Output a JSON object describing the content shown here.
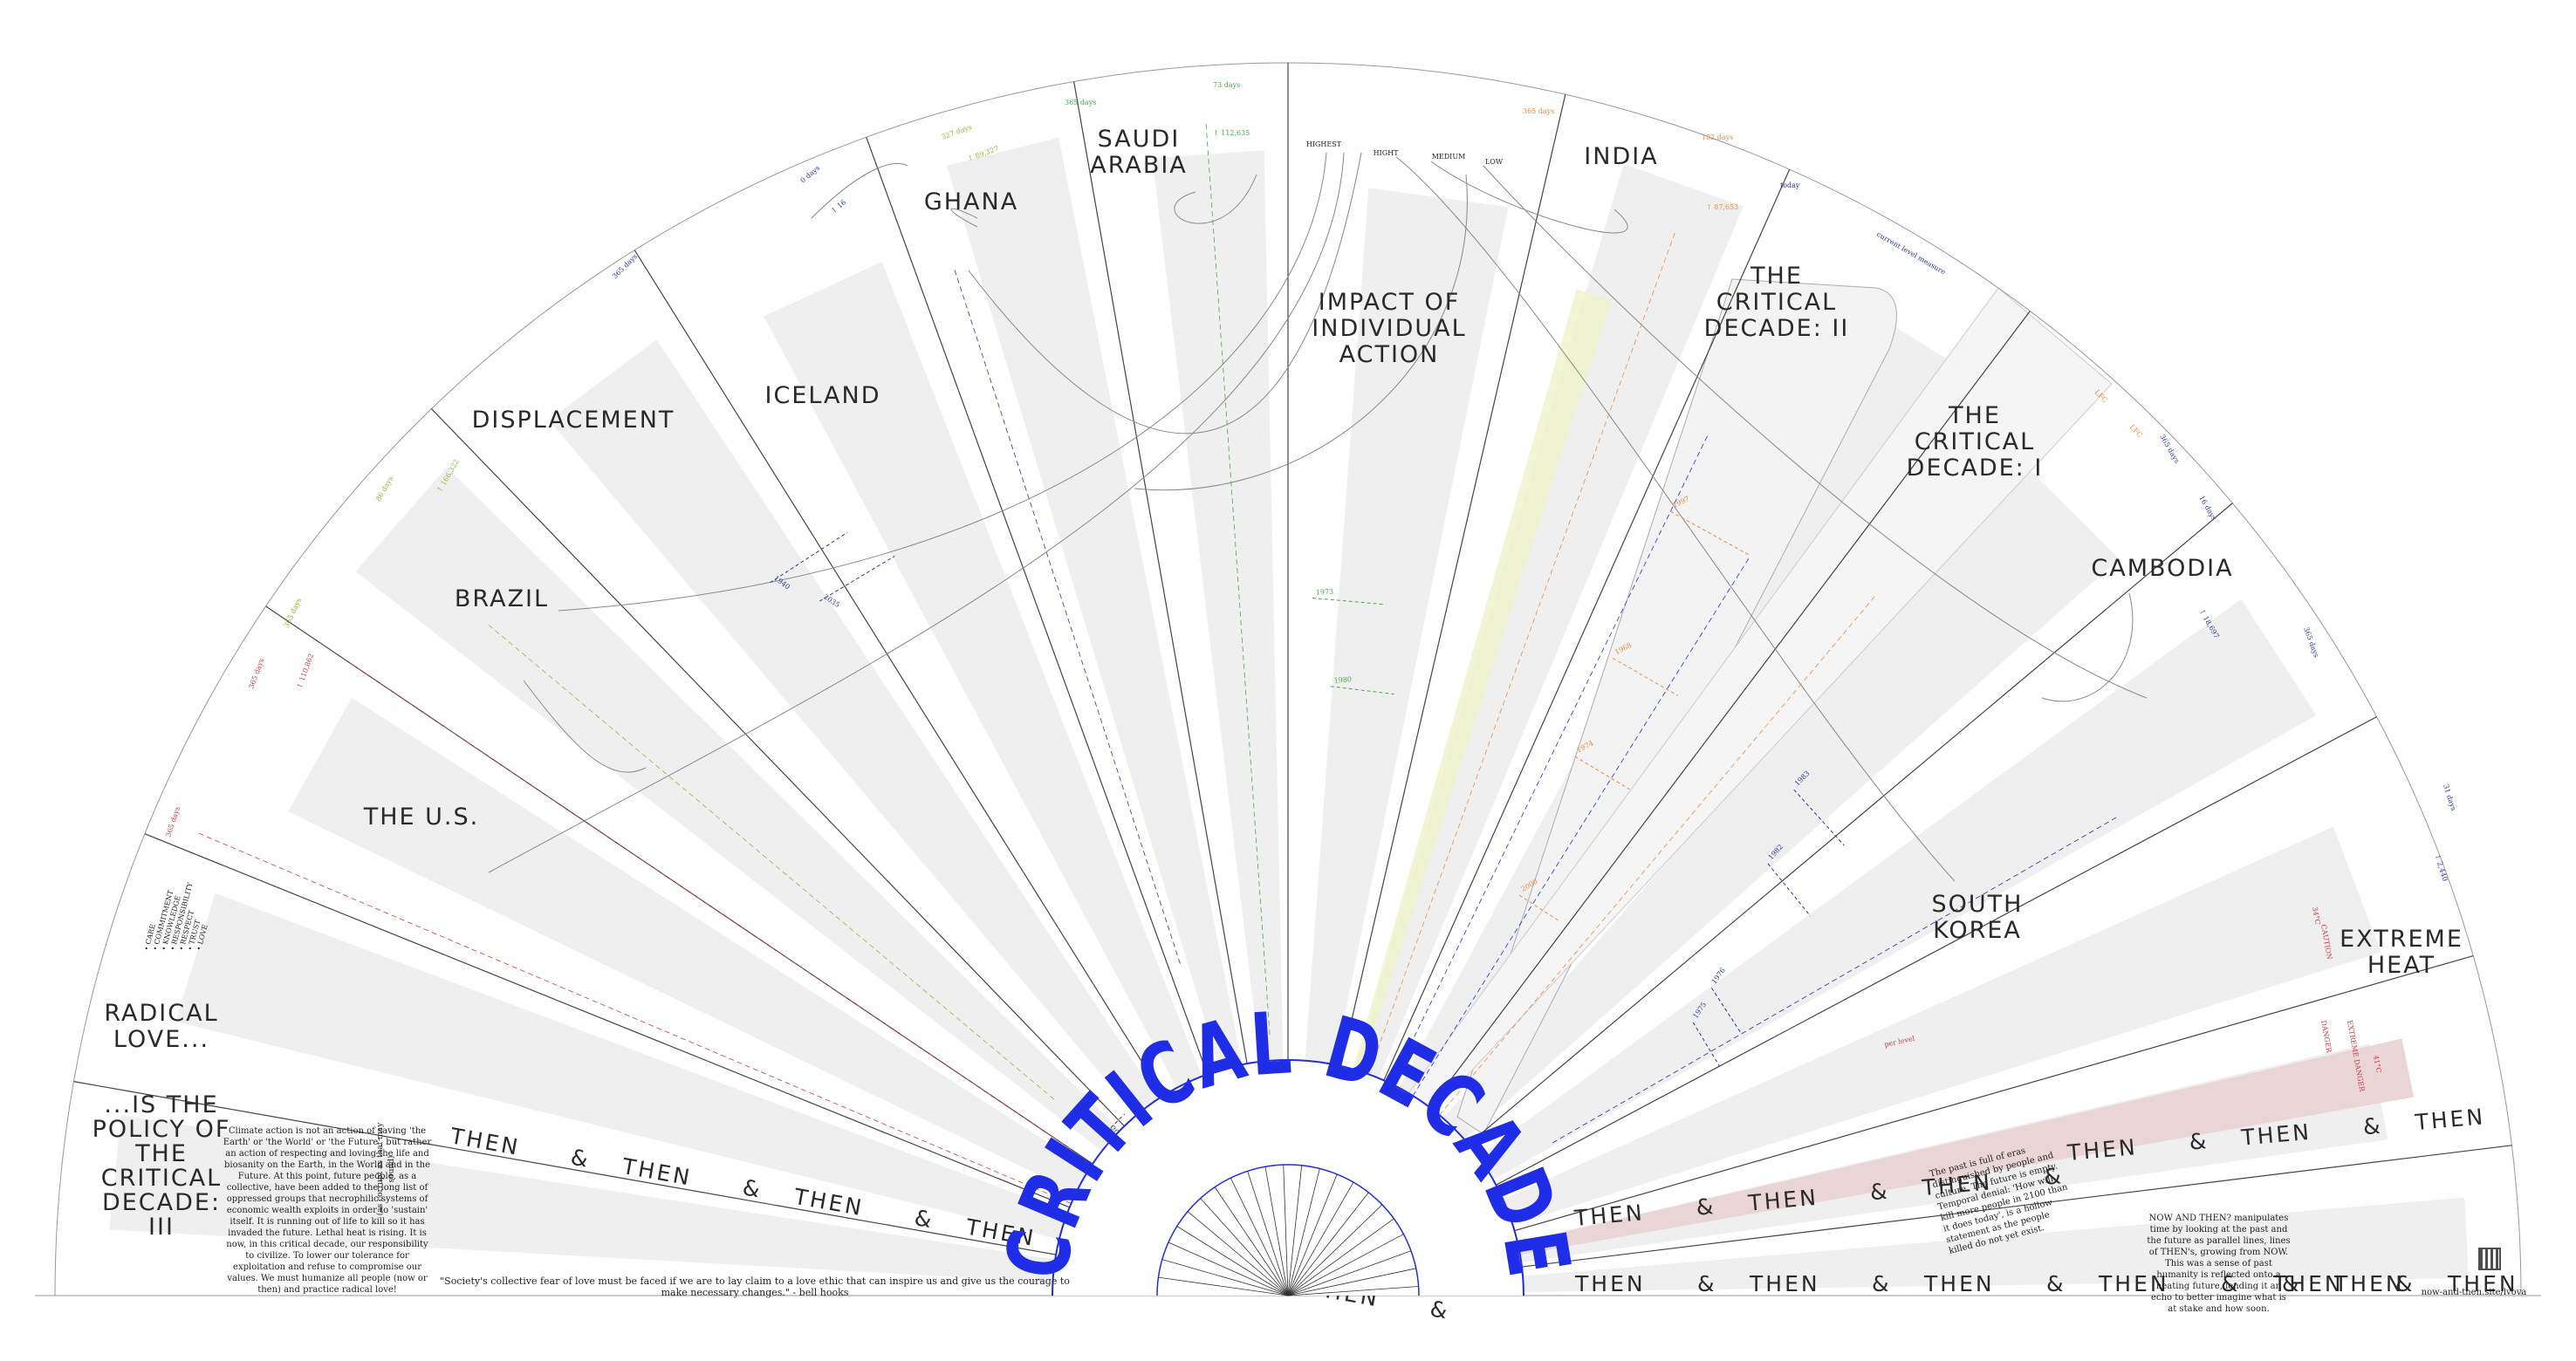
{
  "center_title": "CRITICAL DECADE",
  "sections": {
    "radical_love": "RADICAL LOVE...",
    "is_the_policy": "...IS THE POLICY OF THE CRITICAL DECADE: III",
    "the_us": "THE U.S.",
    "brazil": "BRAZIL",
    "displacement": "DISPLACEMENT",
    "iceland": "ICELAND",
    "ghana": "GHANA",
    "saudi_arabia": "SAUDI ARABIA",
    "impact": "IMPACT OF INDIVIDUAL ACTION",
    "india": "INDIA",
    "critical_decade_2": "THE CRITICAL DECADE: II",
    "critical_decade_1": "THE CRITICAL DECADE: I",
    "cambodia": "CAMBODIA",
    "south_korea": "SOUTH KOREA",
    "extreme_heat": "EXTREME HEAT"
  },
  "impact_levels": [
    "HIGHEST",
    "HIGHT",
    "MEDIUM",
    "LOW"
  ],
  "love_list": [
    "CARE",
    "COMMITMENT",
    "KNOWLEDGE",
    "RESPONSIBILITY",
    "RESPECT",
    "TRUST",
    "LOVE"
  ],
  "then_word": "THEN",
  "amp": "&",
  "now_word": "NOW",
  "left_paragraph": "Climate action is not an action of saving 'the Earth' or 'the World' or 'the Future', but rather an action of respecting and loving the life and biosanity on the Earth, in the World and in the Future. At this point, future people, as a collective, have been added to the long list of oppressed groups that necrophilic systems of economic wealth exploits in order to 'sustain' itself. It is running out of life to kill so it has invaded the future. Lethal heat is rising. It is now, in this critical decade, our responsibility to civilize. To lower our tolerance for exploitation and refuse to compromise our values. We must humanize all people (now or then) and practice radical love!",
  "quote": "\"Society's collective fear of love must be faced if we are to lay claim to a love ethic that can inspire us and give us the courage to make necessary changes.\" - bell hooks",
  "vertical_note": "(as corrupt as that may sound)",
  "mid_paragraph": "The past is full of eras distinguished by people and culture. The future is empty. Temporal denial: 'How will kill more people in 2100 than it does today', is a hollow statement as the people killed do not yet exist.",
  "right_paragraph": "NOW AND THEN? manipulates time by looking at the past and the future as parallel lines, lines of THEN's, growing from NOW. This was a sense of past humanity is reflected onto a heating future, lending it an echo to better imagine what is at stake and how soon.",
  "credit": "now-and-then.site/lvova",
  "annotations": {
    "days_365": "365 days",
    "days_73": "73 days",
    "days_327": "327 days",
    "days_182": "182 days",
    "days_86": "86 days",
    "days_16": "16 days",
    "days_0": "0 days",
    "days_31": "31 days",
    "num_112635": "↑ 112,635",
    "num_89327": "↑ 89,327",
    "num_87653": "↑ 87,653",
    "num_16": "↑ 16",
    "num_110862": "↑ 110,862",
    "num_166322": "↑ 166,322",
    "num_2440": "↑ 2,440",
    "num_18697": "↑ 18,697",
    "today": "today",
    "per_level": "per level",
    "current_level": "current level measure",
    "lfc": "LFC",
    "caution": "CAUTION",
    "danger": "DANGER",
    "extreme_danger": "EXTREME DANGER",
    "c_34": "34°C",
    "c_41": "41°C",
    "y_2030": "2030",
    "y_2050": "2050",
    "y_1980": "1980",
    "y_1973": "1973",
    "y_1997": "1997",
    "y_1974": "1974",
    "y_1968": "1968",
    "y_2000": "2000",
    "y_1983": "1983",
    "y_1982": "1982",
    "y_1976": "1976",
    "y_1975": "1975",
    "y_1940": "1940",
    "y_2035": "2035",
    "y_2025": "2025"
  },
  "colors": {
    "blue": "#1f2ee6",
    "red": "#d33a3a",
    "orange": "#f08a3c",
    "green": "#4aa84a",
    "olive": "#8fb83a",
    "navy": "#2a3a9a",
    "shade": "#efefef",
    "line": "#444444",
    "heat": "#e8d2d2",
    "yellow": "#eef2c8"
  }
}
